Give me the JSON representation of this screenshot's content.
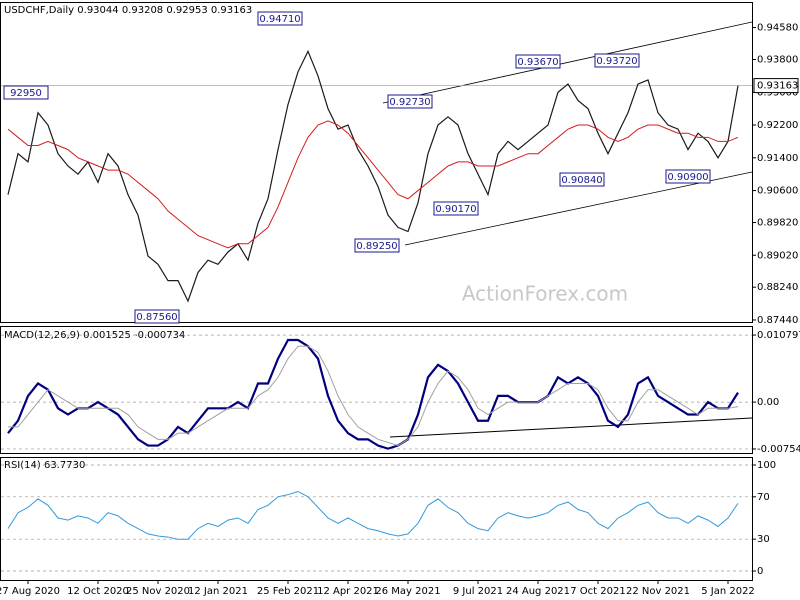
{
  "chart_data": [
    {
      "type": "line",
      "title": "USDCHF,Daily  0.93044 0.93208 0.92953 0.93163",
      "watermark": "ActionForex.com",
      "ylim": [
        0.8739,
        0.9518
      ],
      "yticks": [
        {
          "value": 0.8744,
          "label": "0.87440"
        },
        {
          "value": 0.8824,
          "label": "0.88240"
        },
        {
          "value": 0.8902,
          "label": "0.89020"
        },
        {
          "value": 0.8982,
          "label": "0.89820"
        },
        {
          "value": 0.906,
          "label": "0.90600"
        },
        {
          "value": 0.914,
          "label": "0.91400"
        },
        {
          "value": 0.922,
          "label": "0.92200"
        },
        {
          "value": 0.93,
          "label": "0.93000"
        },
        {
          "value": 0.938,
          "label": "0.93800"
        },
        {
          "value": 0.9458,
          "label": "0.94580"
        }
      ],
      "grid": false,
      "last_price": {
        "value": 0.93163,
        "label": "0.93163"
      },
      "annotations": [
        "0.94710",
        "0.93670",
        "0.93720",
        "0.92730",
        "92950",
        "0.90170",
        "0.90840",
        "0.90900",
        "0.89250",
        "0.87560"
      ],
      "series": [
        {
          "name": "USDCHF",
          "color": "#1a1a1a",
          "values": [
            0.905,
            0.915,
            0.913,
            0.925,
            0.922,
            0.915,
            0.912,
            0.91,
            0.913,
            0.908,
            0.915,
            0.912,
            0.905,
            0.9,
            0.89,
            0.888,
            0.884,
            0.884,
            0.879,
            0.886,
            0.889,
            0.888,
            0.891,
            0.893,
            0.889,
            0.898,
            0.904,
            0.916,
            0.927,
            0.935,
            0.94,
            0.934,
            0.926,
            0.921,
            0.922,
            0.916,
            0.912,
            0.907,
            0.9,
            0.897,
            0.896,
            0.903,
            0.915,
            0.922,
            0.924,
            0.922,
            0.915,
            0.91,
            0.905,
            0.915,
            0.918,
            0.916,
            0.918,
            0.92,
            0.922,
            0.93,
            0.932,
            0.928,
            0.926,
            0.92,
            0.915,
            0.92,
            0.925,
            0.932,
            0.933,
            0.925,
            0.922,
            0.921,
            0.916,
            0.92,
            0.918,
            0.914,
            0.918,
            0.93163
          ]
        },
        {
          "name": "MA",
          "color": "#d41c1c",
          "values": [
            0.921,
            0.919,
            0.917,
            0.917,
            0.918,
            0.917,
            0.916,
            0.914,
            0.913,
            0.912,
            0.911,
            0.911,
            0.91,
            0.908,
            0.906,
            0.904,
            0.901,
            0.899,
            0.897,
            0.895,
            0.894,
            0.893,
            0.892,
            0.893,
            0.893,
            0.895,
            0.897,
            0.902,
            0.908,
            0.914,
            0.919,
            0.922,
            0.923,
            0.922,
            0.92,
            0.917,
            0.914,
            0.911,
            0.908,
            0.905,
            0.904,
            0.906,
            0.908,
            0.91,
            0.912,
            0.913,
            0.913,
            0.912,
            0.912,
            0.912,
            0.913,
            0.914,
            0.915,
            0.915,
            0.917,
            0.919,
            0.921,
            0.922,
            0.922,
            0.921,
            0.919,
            0.918,
            0.919,
            0.921,
            0.922,
            0.922,
            0.921,
            0.92,
            0.92,
            0.919,
            0.919,
            0.918,
            0.918,
            0.919
          ]
        }
      ]
    },
    {
      "type": "line",
      "title": "MACD(12,26,9) 0.001525 -0.000734",
      "ylim": [
        -0.0082,
        0.0121
      ],
      "yticks": [
        -0.007548,
        {
          "value": 0,
          "label": "0.00"
        },
        0.010797
      ],
      "grid": true,
      "series": [
        {
          "name": "MACD",
          "color": "#00007f",
          "values": [
            -0.005,
            -0.003,
            0.001,
            0.003,
            0.002,
            -0.001,
            -0.002,
            -0.001,
            -0.001,
            0,
            -0.001,
            -0.002,
            -0.004,
            -0.006,
            -0.007,
            -0.007,
            -0.006,
            -0.004,
            -0.005,
            -0.003,
            -0.001,
            -0.001,
            -0.001,
            0,
            -0.001,
            0.003,
            0.003,
            0.007,
            0.01,
            0.01,
            0.009,
            0.007,
            0.001,
            -0.003,
            -0.005,
            -0.006,
            -0.006,
            -0.007,
            -0.0075,
            -0.007,
            -0.006,
            -0.002,
            0.004,
            0.006,
            0.005,
            0.003,
            0,
            -0.003,
            -0.003,
            0.001,
            0.001,
            0,
            0,
            0,
            0.001,
            0.004,
            0.003,
            0.004,
            0.003,
            0.001,
            -0.003,
            -0.004,
            -0.002,
            0.003,
            0.004,
            0.001,
            0,
            -0.001,
            -0.002,
            -0.002,
            0,
            -0.001,
            -0.001,
            0.001525
          ]
        },
        {
          "name": "Signal",
          "color": "#a0a0a0",
          "values": [
            -0.004,
            -0.004,
            -0.002,
            0,
            0.002,
            0.001,
            0,
            -0.001,
            -0.001,
            -0.001,
            -0.001,
            -0.001,
            -0.002,
            -0.004,
            -0.005,
            -0.006,
            -0.006,
            -0.005,
            -0.005,
            -0.004,
            -0.003,
            -0.002,
            -0.001,
            -0.001,
            -0.001,
            0.001,
            0.002,
            0.004,
            0.007,
            0.009,
            0.009,
            0.008,
            0.005,
            0.001,
            -0.002,
            -0.004,
            -0.005,
            -0.006,
            -0.0065,
            -0.007,
            -0.006,
            -0.004,
            0,
            0.003,
            0.005,
            0.004,
            0.002,
            -0.001,
            -0.002,
            -0.001,
            0,
            0,
            0,
            0,
            0.001,
            0.002,
            0.003,
            0.003,
            0.003,
            0.002,
            -0.001,
            -0.003,
            -0.003,
            0,
            0.002,
            0.002,
            0.001,
            0,
            -0.001,
            -0.002,
            -0.001,
            -0.001,
            -0.001,
            -0.000734
          ]
        }
      ]
    },
    {
      "type": "line",
      "title": "RSI(14) 63.7730",
      "ylim": [
        -8.5,
        106.6
      ],
      "yticks": [
        0,
        30,
        70,
        100
      ],
      "grid": true,
      "categories": [
        null,
        null,
        "27 Aug 2020",
        null,
        null,
        null,
        null,
        null,
        null,
        "12 Oct 2020",
        null,
        null,
        null,
        null,
        null,
        "25 Nov 2020",
        null,
        null,
        null,
        null,
        null,
        "12 Jan 2021",
        null,
        null,
        null,
        null,
        null,
        null,
        "25 Feb 2021",
        null,
        null,
        null,
        null,
        null,
        "12 Apr 2021",
        null,
        null,
        null,
        null,
        null,
        "26 May 2021",
        null,
        null,
        null,
        null,
        null,
        null,
        "9 Jul 2021",
        null,
        null,
        null,
        null,
        null,
        "24 Aug 2021",
        null,
        null,
        null,
        null,
        null,
        "7 Oct 2021",
        null,
        null,
        null,
        null,
        null,
        "22 Nov 2021",
        null,
        null,
        null,
        null,
        null,
        null,
        "5 Jan 2022",
        null
      ],
      "series": [
        {
          "name": "RSI",
          "color": "#3399dd",
          "values": [
            40,
            55,
            60,
            68,
            62,
            50,
            48,
            52,
            50,
            45,
            55,
            52,
            45,
            40,
            35,
            33,
            32,
            30,
            30,
            40,
            45,
            42,
            48,
            50,
            45,
            58,
            62,
            70,
            72,
            75,
            70,
            60,
            50,
            45,
            50,
            45,
            40,
            38,
            35,
            33,
            35,
            45,
            62,
            68,
            60,
            55,
            45,
            40,
            38,
            50,
            55,
            52,
            50,
            52,
            55,
            62,
            65,
            58,
            55,
            45,
            40,
            50,
            55,
            62,
            65,
            55,
            50,
            50,
            45,
            52,
            48,
            42,
            50,
            63.773
          ]
        }
      ]
    }
  ]
}
